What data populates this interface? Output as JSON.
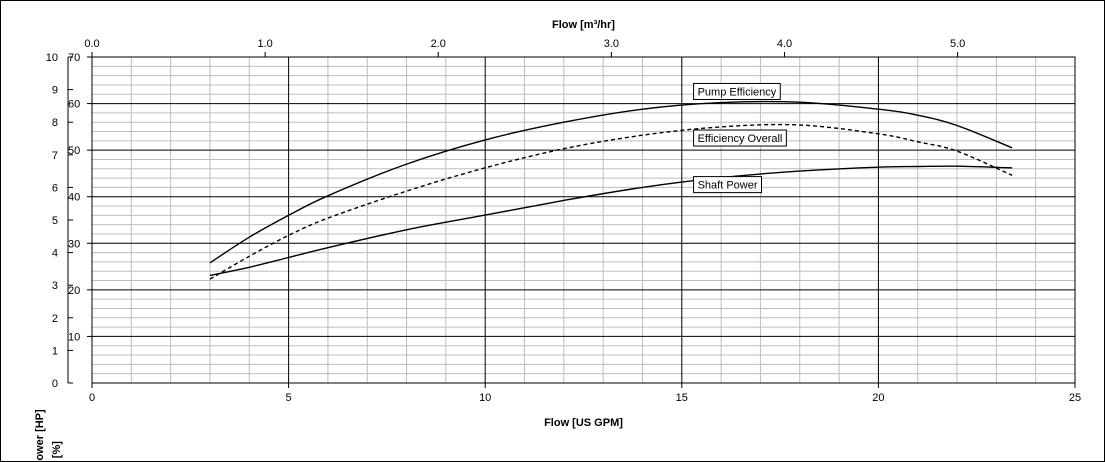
{
  "chart_data": {
    "type": "line",
    "title": "",
    "top_axis": {
      "label": "Flow [m³/hr]",
      "ticks": [
        "0.0",
        "1.0",
        "2.0",
        "3.0",
        "4.0",
        "5.0"
      ],
      "range": [
        0,
        5.678
      ]
    },
    "bottom_axis": {
      "label": "Flow [US GPM]",
      "ticks": [
        "0",
        "5",
        "10",
        "15",
        "20",
        "25"
      ],
      "range": [
        0,
        25
      ]
    },
    "left_axis_power": {
      "label": "Power [HP]",
      "ticks": [
        "0",
        "1",
        "2",
        "3",
        "4",
        "5",
        "6",
        "7",
        "8",
        "9",
        "10"
      ],
      "range": [
        0,
        10
      ]
    },
    "left_axis_efficiency": {
      "label": "η [%]",
      "ticks": [
        "10",
        "20",
        "30",
        "40",
        "50",
        "60",
        "70"
      ],
      "range": [
        0,
        70
      ]
    },
    "grid": true,
    "series": [
      {
        "name": "Pump Efficiency",
        "axis": "efficiency",
        "style": "solid",
        "x": [
          3,
          4,
          5,
          6,
          8,
          10,
          12,
          14,
          16,
          18,
          20,
          21,
          22,
          23.4
        ],
        "y": [
          25.8,
          31.3,
          36.0,
          40.2,
          47.0,
          52.2,
          56.0,
          58.8,
          60.2,
          60.3,
          58.8,
          57.5,
          55.3,
          50.5
        ]
      },
      {
        "name": "Efficiency Overall",
        "axis": "efficiency",
        "style": "dashed",
        "x": [
          3,
          4,
          5,
          6,
          8,
          10,
          12,
          14,
          16,
          18,
          20,
          21,
          22,
          23.4
        ],
        "y": [
          22.3,
          27.2,
          31.7,
          35.4,
          41.2,
          46.2,
          50.3,
          53.2,
          55.0,
          55.4,
          53.5,
          51.8,
          49.8,
          44.6
        ]
      },
      {
        "name": "Shaft Power",
        "axis": "power",
        "style": "solid",
        "x": [
          3,
          4,
          5,
          6,
          8,
          10,
          12,
          14,
          16,
          18,
          20,
          21,
          22,
          23.4
        ],
        "y": [
          3.3,
          3.55,
          3.85,
          4.15,
          4.7,
          5.15,
          5.6,
          6.0,
          6.3,
          6.5,
          6.62,
          6.64,
          6.65,
          6.6
        ]
      }
    ],
    "annotations": [
      {
        "text": "Pump Efficiency",
        "x": 15.3,
        "y_eff": 62.6
      },
      {
        "text": "Efficiency Overall",
        "x": 15.3,
        "y_eff": 52.6
      },
      {
        "text": "Shaft Power",
        "x": 15.3,
        "y_eff": 42.6
      }
    ]
  }
}
